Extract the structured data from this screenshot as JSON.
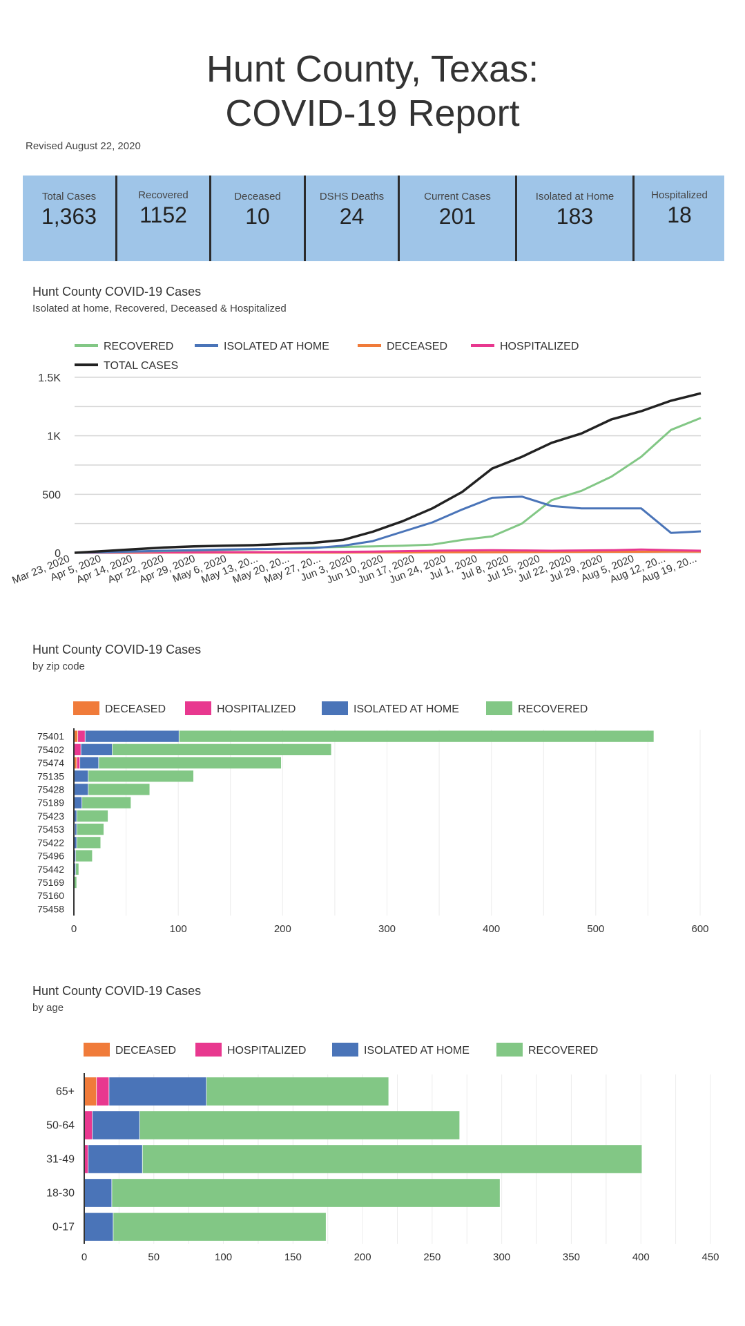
{
  "header": {
    "title_line1": "Hunt County, Texas:",
    "title_line2": "COVID-19 Report",
    "revised": "Revised August 22, 2020"
  },
  "stats": [
    {
      "label": "Total Cases",
      "value": "1,363"
    },
    {
      "label": "Recovered",
      "value": "1152"
    },
    {
      "label": "Deceased",
      "value": "10"
    },
    {
      "label": "DSHS Deaths",
      "value": "24"
    },
    {
      "label": "Current Cases",
      "value": "201"
    },
    {
      "label": "Isolated at Home",
      "value": "183"
    },
    {
      "label": "Hospitalized",
      "value": "18"
    }
  ],
  "colors": {
    "recovered": "#82c785",
    "isolated": "#4a74b8",
    "deceased": "#f07b3a",
    "hospitalized": "#e8388f",
    "total": "#222222",
    "stat_bg": "#9fc5e8"
  },
  "chart_data": [
    {
      "type": "line",
      "title": "Hunt County COVID-19 Cases",
      "subtitle": "Isolated at home, Recovered, Deceased & Hospitalized",
      "legend": [
        "RECOVERED",
        "ISOLATED AT HOME",
        "DECEASED",
        "HOSPITALIZED",
        "TOTAL CASES"
      ],
      "legend_position": "top",
      "ylim": [
        0,
        1500
      ],
      "yticks": [
        0,
        500,
        1000,
        1500
      ],
      "ytick_labels": [
        "0",
        "500",
        "1K",
        "1.5K"
      ],
      "grid": true,
      "x_tick_labels": [
        "Mar 23, 2020",
        "Apr 5, 2020",
        "Apr 14, 2020",
        "Apr 22, 2020",
        "Apr 29, 2020",
        "May 6, 2020",
        "May 13, 20...",
        "May 20, 20...",
        "May 27, 20...",
        "Jun 3, 2020",
        "Jun 10, 2020",
        "Jun 17, 2020",
        "Jun 24, 2020",
        "Jul 1, 2020",
        "Jul 8, 2020",
        "Jul 15, 2020",
        "Jul 22, 2020",
        "Jul 29, 2020",
        "Aug 5, 2020",
        "Aug 12, 20...",
        "Aug 19, 20..."
      ],
      "x": [
        "Mar 23",
        "Apr 5",
        "Apr 14",
        "Apr 22",
        "Apr 29",
        "May 6",
        "May 13",
        "May 20",
        "May 27",
        "Jun 3",
        "Jun 10",
        "Jun 17",
        "Jun 24",
        "Jul 1",
        "Jul 8",
        "Jul 15",
        "Jul 22",
        "Jul 29",
        "Aug 5",
        "Aug 12",
        "Aug 19",
        "Aug 22"
      ],
      "series": [
        {
          "name": "RECOVERED",
          "values": [
            0,
            5,
            10,
            15,
            20,
            25,
            30,
            35,
            45,
            50,
            55,
            60,
            70,
            110,
            140,
            250,
            450,
            530,
            650,
            820,
            1050,
            1152
          ]
        },
        {
          "name": "ISOLATED AT HOME",
          "values": [
            0,
            5,
            12,
            18,
            22,
            28,
            32,
            35,
            40,
            60,
            100,
            180,
            260,
            370,
            470,
            480,
            400,
            380,
            380,
            380,
            170,
            183
          ]
        },
        {
          "name": "DECEASED",
          "values": [
            0,
            0,
            0,
            1,
            1,
            1,
            2,
            2,
            2,
            2,
            3,
            3,
            4,
            5,
            5,
            6,
            7,
            8,
            9,
            9,
            10,
            10
          ]
        },
        {
          "name": "HOSPITALIZED",
          "values": [
            0,
            2,
            4,
            5,
            5,
            6,
            6,
            6,
            7,
            8,
            10,
            14,
            18,
            20,
            22,
            20,
            18,
            20,
            22,
            28,
            22,
            18
          ]
        },
        {
          "name": "TOTAL CASES",
          "values": [
            0,
            15,
            30,
            45,
            55,
            60,
            65,
            75,
            85,
            110,
            180,
            270,
            380,
            520,
            720,
            820,
            940,
            1020,
            1140,
            1210,
            1300,
            1363
          ]
        }
      ]
    },
    {
      "type": "bar",
      "orientation": "horizontal",
      "stacked": true,
      "title": "Hunt County COVID-19 Cases",
      "subtitle": "by zip code",
      "legend": [
        "DECEASED",
        "HOSPITALIZED",
        "ISOLATED AT HOME",
        "RECOVERED"
      ],
      "legend_position": "top",
      "xlim": [
        0,
        600
      ],
      "xticks": [
        0,
        100,
        200,
        300,
        400,
        500,
        600
      ],
      "grid": true,
      "categories": [
        "75401",
        "75402",
        "75474",
        "75135",
        "75428",
        "75189",
        "75423",
        "75453",
        "75422",
        "75496",
        "75442",
        "75169",
        "75160",
        "75458"
      ],
      "series": [
        {
          "name": "DECEASED",
          "values": [
            4,
            0,
            3,
            0,
            0,
            0,
            0,
            0,
            0,
            0,
            0,
            0,
            0,
            0
          ]
        },
        {
          "name": "HOSPITALIZED",
          "values": [
            7,
            7,
            3,
            0,
            0,
            0,
            0,
            1,
            0,
            0,
            0,
            0,
            0,
            0
          ]
        },
        {
          "name": "ISOLATED AT HOME",
          "values": [
            90,
            30,
            18,
            14,
            14,
            8,
            3,
            2,
            3,
            2,
            2,
            0,
            0,
            0
          ]
        },
        {
          "name": "RECOVERED",
          "values": [
            455,
            210,
            175,
            101,
            59,
            47,
            30,
            26,
            23,
            16,
            3,
            3,
            0,
            0
          ]
        }
      ]
    },
    {
      "type": "bar",
      "orientation": "horizontal",
      "stacked": true,
      "title": "Hunt County COVID-19 Cases",
      "subtitle": "by age",
      "legend": [
        "DECEASED",
        "HOSPITALIZED",
        "ISOLATED AT HOME",
        "RECOVERED"
      ],
      "legend_position": "top",
      "xlim": [
        0,
        450
      ],
      "xticks": [
        0,
        50,
        100,
        150,
        200,
        250,
        300,
        350,
        400,
        450
      ],
      "grid": true,
      "categories": [
        "65+",
        "50-64",
        "31-49",
        "18-30",
        "0-17"
      ],
      "series": [
        {
          "name": "DECEASED",
          "values": [
            9,
            0,
            0,
            0,
            0
          ]
        },
        {
          "name": "HOSPITALIZED",
          "values": [
            9,
            6,
            3,
            0,
            0
          ]
        },
        {
          "name": "ISOLATED AT HOME",
          "values": [
            70,
            34,
            39,
            20,
            21
          ]
        },
        {
          "name": "RECOVERED",
          "values": [
            131,
            230,
            359,
            279,
            153
          ]
        }
      ]
    }
  ]
}
